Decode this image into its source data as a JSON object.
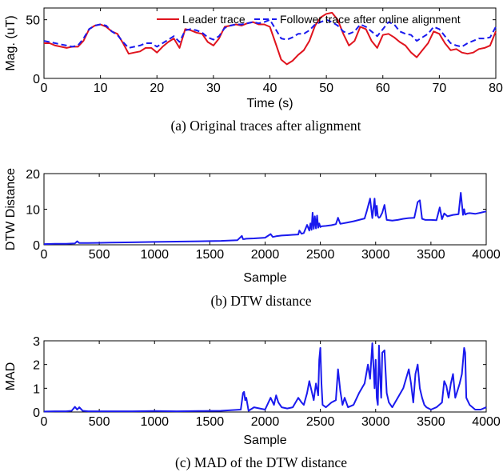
{
  "chart_data": [
    {
      "type": "line",
      "caption": "(a) Original traces after alignment",
      "xlabel": "Time (s)",
      "ylabel": "Mag. (uT)",
      "xlim": [
        0,
        80
      ],
      "ylim": [
        0,
        60
      ],
      "xticks": [
        "0",
        "10",
        "20",
        "30",
        "40",
        "50",
        "60",
        "70",
        "80"
      ],
      "yticks": [
        "0",
        "50"
      ],
      "legend": "top-right",
      "series": [
        {
          "name": "Leader trace",
          "color": "#e0141e",
          "style": "solid",
          "x": [
            0,
            1,
            2,
            3,
            4,
            5,
            6,
            7,
            8,
            9,
            10,
            11,
            12,
            13,
            14,
            15,
            16,
            17,
            18,
            19,
            20,
            21,
            22,
            23,
            24,
            25,
            26,
            27,
            28,
            29,
            30,
            31,
            32,
            33,
            34,
            35,
            36,
            37,
            38,
            39,
            40,
            41,
            42,
            43,
            44,
            45,
            46,
            47,
            48,
            49,
            50,
            51,
            52,
            53,
            54,
            55,
            56,
            57,
            58,
            59,
            60,
            61,
            62,
            63,
            64,
            65,
            66,
            67,
            68,
            69,
            70,
            71,
            72,
            73,
            74,
            75,
            76,
            77,
            78,
            79,
            80
          ],
          "values": [
            30,
            30,
            28,
            27,
            26,
            27,
            27,
            32,
            42,
            45,
            46,
            44,
            40,
            38,
            30,
            21,
            22,
            23,
            26,
            26,
            22,
            27,
            31,
            34,
            26,
            42,
            41,
            39,
            38,
            31,
            28,
            34,
            44,
            45,
            46,
            45,
            47,
            48,
            46,
            46,
            44,
            30,
            16,
            12,
            15,
            20,
            24,
            32,
            45,
            52,
            55,
            56,
            50,
            38,
            28,
            32,
            44,
            42,
            32,
            26,
            37,
            38,
            35,
            31,
            28,
            22,
            18,
            24,
            30,
            40,
            38,
            30,
            24,
            25,
            22,
            21,
            22,
            25,
            26,
            28,
            40
          ]
        },
        {
          "name": "Follower trace after online alignment",
          "color": "#1a1aee",
          "style": "dashed",
          "x": [
            0,
            1,
            2,
            3,
            4,
            5,
            6,
            7,
            8,
            9,
            10,
            11,
            12,
            13,
            14,
            15,
            16,
            17,
            18,
            19,
            20,
            21,
            22,
            23,
            24,
            25,
            26,
            27,
            28,
            29,
            30,
            31,
            32,
            33,
            34,
            35,
            36,
            37,
            38,
            39,
            40,
            41,
            42,
            43,
            44,
            45,
            46,
            47,
            48,
            49,
            50,
            51,
            52,
            53,
            54,
            55,
            56,
            57,
            58,
            59,
            60,
            61,
            62,
            63,
            64,
            65,
            66,
            67,
            68,
            69,
            70,
            71,
            72,
            73,
            74,
            75,
            76,
            77,
            78,
            79,
            80
          ],
          "values": [
            32,
            31,
            30,
            29,
            28,
            27,
            28,
            34,
            42,
            45,
            46,
            45,
            40,
            37,
            31,
            26,
            27,
            28,
            30,
            30,
            27,
            30,
            33,
            36,
            31,
            41,
            42,
            41,
            39,
            35,
            33,
            36,
            43,
            45,
            46,
            46,
            47,
            48,
            47,
            48,
            50,
            42,
            34,
            33,
            35,
            38,
            38,
            41,
            46,
            48,
            50,
            48,
            45,
            40,
            38,
            40,
            46,
            44,
            40,
            36,
            42,
            48,
            46,
            40,
            38,
            37,
            32,
            35,
            38,
            44,
            42,
            36,
            30,
            28,
            27,
            30,
            32,
            34,
            34,
            35,
            44
          ]
        }
      ]
    },
    {
      "type": "line",
      "caption": "(b) DTW distance",
      "xlabel": "Sample",
      "ylabel": "DTW Distance",
      "xlim": [
        0,
        4000
      ],
      "ylim": [
        0,
        20
      ],
      "xticks": [
        "0",
        "500",
        "1000",
        "1500",
        "2000",
        "2500",
        "3000",
        "3500",
        "4000"
      ],
      "yticks": [
        "0",
        "10",
        "20"
      ],
      "series": [
        {
          "color": "#1a1aee",
          "x": [
            0,
            100,
            200,
            280,
            300,
            320,
            400,
            600,
            800,
            1000,
            1200,
            1400,
            1600,
            1750,
            1790,
            1800,
            1810,
            1830,
            1900,
            2000,
            2050,
            2070,
            2100,
            2150,
            2200,
            2250,
            2300,
            2310,
            2330,
            2350,
            2380,
            2400,
            2410,
            2420,
            2430,
            2440,
            2450,
            2460,
            2470,
            2480,
            2490,
            2500,
            2510,
            2550,
            2600,
            2640,
            2660,
            2680,
            2700,
            2750,
            2800,
            2850,
            2900,
            2920,
            2950,
            2970,
            2990,
            3000,
            3010,
            3020,
            3030,
            3040,
            3060,
            3080,
            3100,
            3150,
            3200,
            3250,
            3300,
            3350,
            3380,
            3400,
            3420,
            3450,
            3500,
            3550,
            3580,
            3600,
            3620,
            3650,
            3700,
            3750,
            3770,
            3790,
            3800,
            3810,
            3830,
            3850,
            3900,
            3950,
            4000
          ],
          "values": [
            0.2,
            0.3,
            0.3,
            0.4,
            1.0,
            0.5,
            0.5,
            0.6,
            0.7,
            0.8,
            0.9,
            1.0,
            1.1,
            1.3,
            2.5,
            1.6,
            1.6,
            1.7,
            1.8,
            2.0,
            3.0,
            2.2,
            2.4,
            2.6,
            2.7,
            2.8,
            2.9,
            4.0,
            3.1,
            3.3,
            5.6,
            4.0,
            6.0,
            4.2,
            9.0,
            4.5,
            8.0,
            4.6,
            8.2,
            4.8,
            6.0,
            5.0,
            5.2,
            5.3,
            5.5,
            5.8,
            7.6,
            5.9,
            6.0,
            6.3,
            6.6,
            7.0,
            7.4,
            9.5,
            13.0,
            7.5,
            13.0,
            8.2,
            11.0,
            8.0,
            7.6,
            7.8,
            9.0,
            11.2,
            7.0,
            6.8,
            7.0,
            7.3,
            7.5,
            7.6,
            12.0,
            12.5,
            7.3,
            7.0,
            7.0,
            6.9,
            10.5,
            7.2,
            8.8,
            8.0,
            8.4,
            8.6,
            14.6,
            8.4,
            10.0,
            8.5,
            8.8,
            8.9,
            8.7,
            9.0,
            9.4
          ]
        }
      ]
    },
    {
      "type": "line",
      "caption": "(c) MAD of the DTW distance",
      "xlabel": "Sample",
      "ylabel": "MAD",
      "xlim": [
        0,
        4000
      ],
      "ylim": [
        0,
        3
      ],
      "xticks": [
        "0",
        "500",
        "1000",
        "1500",
        "2000",
        "2500",
        "3000",
        "3500",
        "4000"
      ],
      "yticks": [
        "0",
        "1",
        "2",
        "3"
      ],
      "series": [
        {
          "color": "#1a1aee",
          "x": [
            0,
            100,
            200,
            250,
            280,
            300,
            320,
            350,
            400,
            600,
            800,
            1000,
            1200,
            1400,
            1600,
            1780,
            1800,
            1810,
            1820,
            1830,
            1850,
            1900,
            2000,
            2050,
            2080,
            2100,
            2120,
            2150,
            2200,
            2250,
            2300,
            2330,
            2350,
            2380,
            2400,
            2420,
            2440,
            2460,
            2480,
            2490,
            2500,
            2510,
            2520,
            2550,
            2600,
            2640,
            2660,
            2680,
            2700,
            2720,
            2750,
            2800,
            2850,
            2900,
            2930,
            2950,
            2970,
            2990,
            3000,
            3010,
            3020,
            3030,
            3040,
            3050,
            3060,
            3080,
            3100,
            3120,
            3150,
            3200,
            3250,
            3300,
            3320,
            3340,
            3360,
            3380,
            3400,
            3420,
            3440,
            3460,
            3500,
            3550,
            3600,
            3620,
            3640,
            3660,
            3680,
            3700,
            3720,
            3740,
            3760,
            3780,
            3800,
            3810,
            3820,
            3830,
            3850,
            3900,
            3950,
            4000
          ],
          "values": [
            0.02,
            0.03,
            0.03,
            0.05,
            0.22,
            0.1,
            0.2,
            0.05,
            0.03,
            0.03,
            0.03,
            0.04,
            0.03,
            0.04,
            0.05,
            0.1,
            0.8,
            0.85,
            0.5,
            0.6,
            0.05,
            0.2,
            0.1,
            0.6,
            0.3,
            0.7,
            0.4,
            0.2,
            0.15,
            0.2,
            0.6,
            0.4,
            0.3,
            0.8,
            1.3,
            0.9,
            0.5,
            1.2,
            0.7,
            2.2,
            2.7,
            1.2,
            0.3,
            0.2,
            0.4,
            0.5,
            1.8,
            0.9,
            0.3,
            0.6,
            0.2,
            0.3,
            0.8,
            1.2,
            2.0,
            1.4,
            2.9,
            1.0,
            2.2,
            0.6,
            0.3,
            2.8,
            1.5,
            0.6,
            2.5,
            2.6,
            0.8,
            0.4,
            0.2,
            0.6,
            1.0,
            1.8,
            1.2,
            0.4,
            1.6,
            2.0,
            1.0,
            0.6,
            0.3,
            0.2,
            0.1,
            0.2,
            0.4,
            1.3,
            1.1,
            0.6,
            1.2,
            1.6,
            0.6,
            0.9,
            1.2,
            1.6,
            2.7,
            2.5,
            0.6,
            0.5,
            0.3,
            0.1,
            0.1,
            0.2
          ]
        }
      ]
    }
  ]
}
